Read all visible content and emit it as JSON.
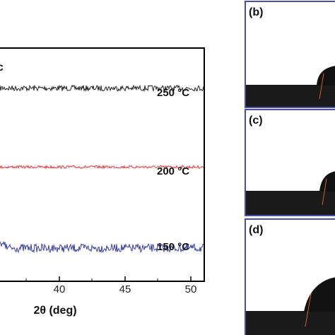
{
  "chart_data": {
    "type": "line",
    "xlabel": "2θ (deg)",
    "ylabel": "",
    "x_ticks": [
      "40",
      "45",
      "50"
    ],
    "xlim": [
      30,
      51
    ],
    "series": [
      {
        "name": "250 °C",
        "color": "#222222",
        "baseline": 0.83,
        "noise": 0.012
      },
      {
        "name": "200 °C",
        "color": "#e03c3c",
        "baseline": 0.49,
        "noise": 0.006
      },
      {
        "name": "150 °C",
        "color": "#3b3fa8",
        "baseline": 0.14,
        "noise": 0.018,
        "edge_peak": true
      }
    ],
    "partial_label": "c"
  },
  "panels": [
    {
      "label": "(b)",
      "contact_angle_level": 0.35
    },
    {
      "label": "(c)",
      "contact_angle_level": 0.4
    },
    {
      "label": "(d)",
      "contact_angle_level": 0.45
    }
  ],
  "colors": {
    "frame": "#000000",
    "panel_border": "#4a4fa0",
    "panel_fill": "#ffffff",
    "substrate": "#1a1a1a"
  }
}
